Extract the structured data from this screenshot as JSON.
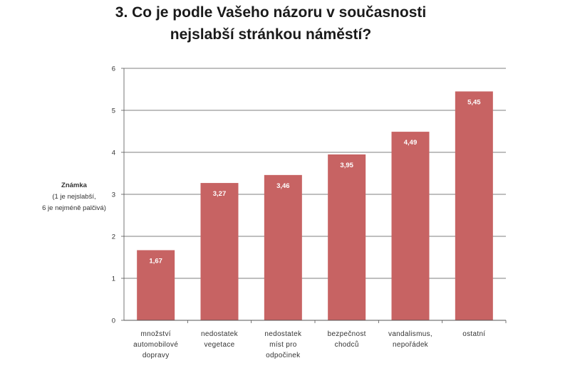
{
  "chart_data": {
    "type": "bar",
    "title": [
      "3. Co je podle Vašeho názoru v současnosti",
      "nejslabší stránkou náměstí?"
    ],
    "ylabel": [
      "Známka",
      "(1 je nejslabší,",
      "6 je nejméně palčivá)"
    ],
    "ylim": [
      0,
      6
    ],
    "yticks": [
      "0",
      "1",
      "2",
      "3",
      "4",
      "5",
      "6"
    ],
    "grid": true,
    "legend": "none",
    "bar_color": "#c76363",
    "categories": [
      [
        "množství",
        "automobilové",
        "dopravy"
      ],
      [
        "nedostatek",
        "vegetace"
      ],
      [
        "nedostatek",
        "míst pro",
        "odpočinek"
      ],
      [
        "bezpečnost",
        "chodců"
      ],
      [
        "vandalismus,",
        "nepořádek"
      ],
      [
        "ostatní"
      ]
    ],
    "values": [
      1.67,
      3.27,
      3.46,
      3.95,
      4.49,
      5.45
    ],
    "data_labels": [
      "1,67",
      "3,27",
      "3,46",
      "3,95",
      "4,49",
      "5,45"
    ]
  }
}
